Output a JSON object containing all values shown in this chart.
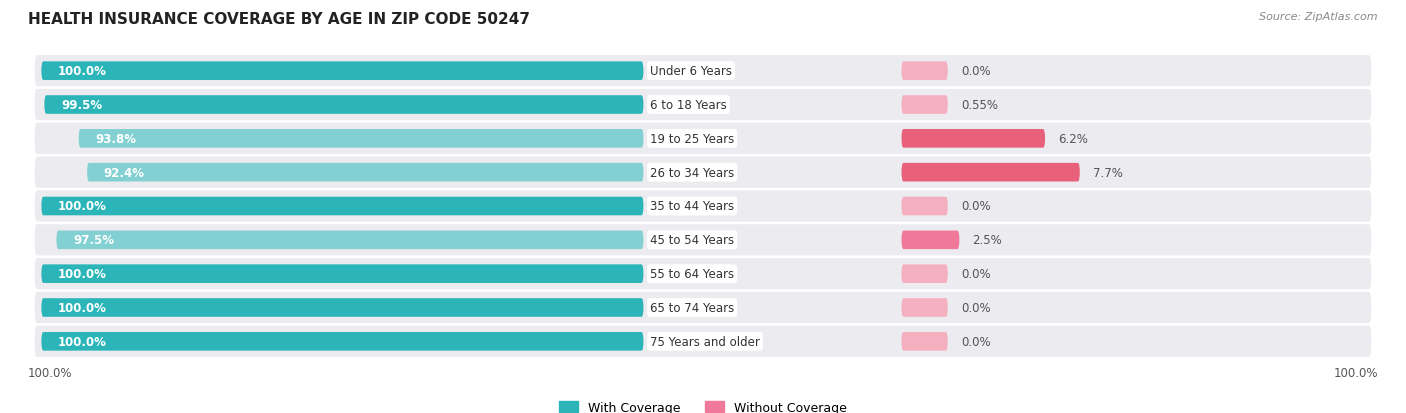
{
  "title": "HEALTH INSURANCE COVERAGE BY AGE IN ZIP CODE 50247",
  "source": "Source: ZipAtlas.com",
  "categories": [
    "Under 6 Years",
    "6 to 18 Years",
    "19 to 25 Years",
    "26 to 34 Years",
    "35 to 44 Years",
    "45 to 54 Years",
    "55 to 64 Years",
    "65 to 74 Years",
    "75 Years and older"
  ],
  "with_coverage": [
    100.0,
    99.5,
    93.8,
    92.4,
    100.0,
    97.5,
    100.0,
    100.0,
    100.0
  ],
  "without_coverage": [
    0.0,
    0.55,
    6.2,
    7.7,
    0.0,
    2.5,
    0.0,
    0.0,
    0.0
  ],
  "with_coverage_labels": [
    "100.0%",
    "99.5%",
    "93.8%",
    "92.4%",
    "100.0%",
    "97.5%",
    "100.0%",
    "100.0%",
    "100.0%"
  ],
  "without_coverage_labels": [
    "0.0%",
    "0.55%",
    "6.2%",
    "7.7%",
    "0.0%",
    "2.5%",
    "0.0%",
    "0.0%",
    "0.0%"
  ],
  "color_with_full": "#2bb5b8",
  "color_with_light": "#82d0d2",
  "color_without_strong": "#e8607a",
  "color_without_mid": "#f07898",
  "color_without_light": "#f5b0c0",
  "color_without_vlight": "#f8cdd6",
  "bg_row": "#ebebf0",
  "legend_label_with": "With Coverage",
  "legend_label_without": "Without Coverage",
  "x_left_label": "100.0%",
  "x_right_label": "100.0%",
  "without_display": [
    2.0,
    2.0,
    6.2,
    7.7,
    2.0,
    2.5,
    2.0,
    2.0,
    2.0
  ],
  "without_colors": [
    "#f5b0c0",
    "#f5b0c0",
    "#e8607a",
    "#e8607a",
    "#f5b0c0",
    "#f07898",
    "#f5b0c0",
    "#f5b0c0",
    "#f5b0c0"
  ],
  "with_colors": [
    "#2bb5b8",
    "#2bb5b8",
    "#82d0d2",
    "#82d0d2",
    "#2bb5b8",
    "#82d0d2",
    "#2bb5b8",
    "#2bb5b8",
    "#2bb5b8"
  ]
}
